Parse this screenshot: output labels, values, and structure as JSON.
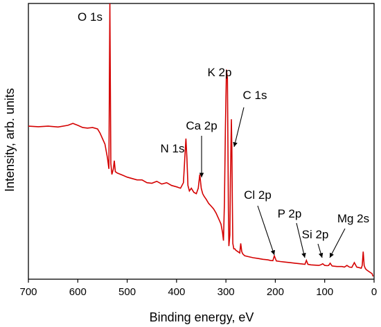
{
  "chart_data": {
    "type": "line",
    "xlabel": "Binding energy, eV",
    "ylabel": "Intensity, arb. units",
    "xlim": [
      700,
      0
    ],
    "ylim": [
      0,
      1
    ],
    "x_reversed": true,
    "y_ticks_shown": false,
    "grid": false,
    "legend": "none",
    "x_ticks": [
      "700",
      "600",
      "500",
      "400",
      "300",
      "200",
      "100",
      "0"
    ],
    "line_color": "#d40000",
    "series": [
      {
        "x": [
          700,
          680,
          660,
          640,
          620,
          610,
          600,
          590,
          580,
          570,
          560,
          555,
          550,
          545,
          540,
          537,
          535,
          533,
          531,
          528,
          526,
          524,
          520,
          510,
          500,
          490,
          480,
          470,
          460,
          450,
          440,
          430,
          420,
          410,
          400,
          392,
          386,
          383,
          381,
          379,
          377,
          374,
          370,
          365,
          360,
          356,
          353,
          350,
          347,
          344,
          340,
          335,
          330,
          325,
          320,
          315,
          310,
          307,
          305,
          303,
          301,
          299,
          297,
          296,
          295,
          294,
          292,
          291,
          289,
          288,
          287,
          286,
          284,
          282,
          280,
          276,
          272,
          270,
          268,
          266,
          262,
          255,
          245,
          235,
          225,
          215,
          210,
          205,
          202,
          198,
          190,
          180,
          170,
          160,
          150,
          145,
          140,
          137,
          134,
          128,
          120,
          112,
          108,
          104,
          100,
          95,
          92,
          89,
          85,
          80,
          75,
          65,
          60,
          55,
          50,
          45,
          40,
          35,
          30,
          26,
          24,
          22,
          20,
          18,
          16,
          12,
          8,
          4,
          2
        ],
        "y": [
          0.555,
          0.553,
          0.555,
          0.552,
          0.558,
          0.565,
          0.558,
          0.55,
          0.548,
          0.55,
          0.545,
          0.53,
          0.51,
          0.49,
          0.44,
          0.4,
          1.0,
          0.42,
          0.38,
          0.4,
          0.43,
          0.39,
          0.385,
          0.378,
          0.37,
          0.365,
          0.36,
          0.36,
          0.35,
          0.348,
          0.355,
          0.345,
          0.35,
          0.34,
          0.335,
          0.33,
          0.35,
          0.45,
          0.51,
          0.44,
          0.34,
          0.32,
          0.33,
          0.315,
          0.31,
          0.33,
          0.38,
          0.33,
          0.31,
          0.3,
          0.29,
          0.275,
          0.265,
          0.255,
          0.24,
          0.22,
          0.2,
          0.17,
          0.14,
          0.28,
          0.55,
          0.76,
          0.73,
          0.5,
          0.25,
          0.12,
          0.16,
          0.36,
          0.58,
          0.48,
          0.28,
          0.13,
          0.11,
          0.11,
          0.105,
          0.1,
          0.095,
          0.13,
          0.1,
          0.092,
          0.085,
          0.082,
          0.078,
          0.075,
          0.072,
          0.07,
          0.068,
          0.067,
          0.085,
          0.066,
          0.064,
          0.062,
          0.06,
          0.058,
          0.056,
          0.055,
          0.054,
          0.068,
          0.054,
          0.052,
          0.051,
          0.05,
          0.052,
          0.056,
          0.05,
          0.049,
          0.05,
          0.058,
          0.048,
          0.047,
          0.046,
          0.046,
          0.044,
          0.05,
          0.044,
          0.043,
          0.06,
          0.044,
          0.042,
          0.04,
          0.05,
          0.1,
          0.05,
          0.04,
          0.035,
          0.03,
          0.025,
          0.02,
          0.01
        ]
      }
    ],
    "annotations": [
      {
        "text": "O 1s"
      },
      {
        "text": "K 2p"
      },
      {
        "text": "C 1s"
      },
      {
        "text": "Ca 2p"
      },
      {
        "text": "N 1s"
      },
      {
        "text": "Cl 2p"
      },
      {
        "text": "P 2p"
      },
      {
        "text": "Si 2p"
      },
      {
        "text": "Mg 2s"
      }
    ]
  }
}
